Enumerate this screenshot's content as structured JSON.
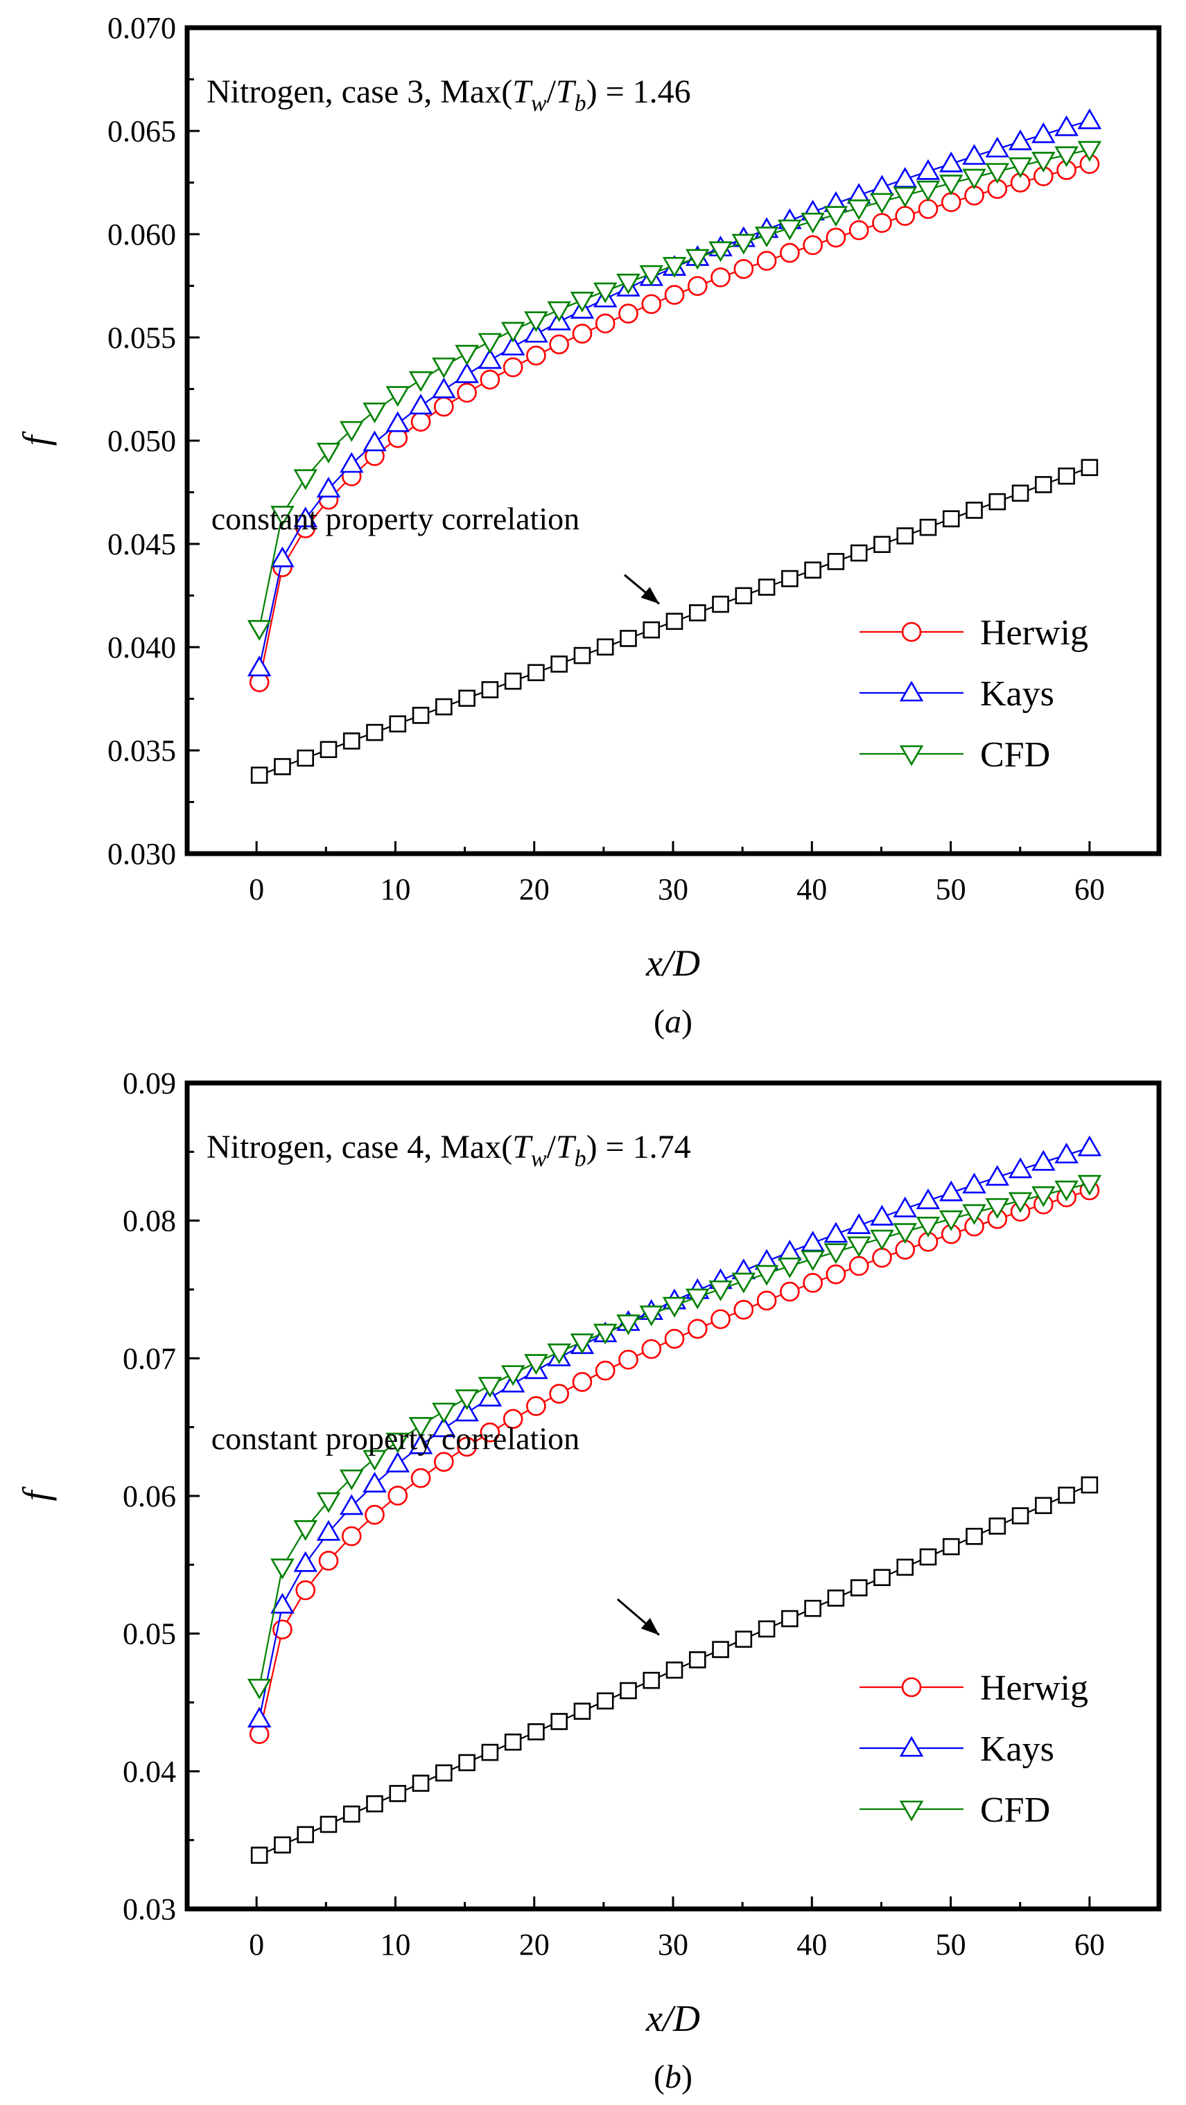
{
  "chart_data": [
    {
      "type": "line",
      "panel_label": "(a)",
      "title_parts": {
        "prefix": "Nitrogen, case 3, Max(",
        "tw": "T",
        "tw_sub": "w",
        "slash": "/",
        "tb": "T",
        "tb_sub": "b",
        "suffix": ") = 1.46"
      },
      "xlabel": "x/D",
      "ylabel": "f",
      "xlim": [
        -5,
        65
      ],
      "ylim": [
        0.03,
        0.07
      ],
      "xticks": [
        0,
        10,
        20,
        30,
        40,
        50,
        60
      ],
      "xtick_labels": [
        "0",
        "10",
        "20",
        "30",
        "40",
        "50",
        "60"
      ],
      "yticks": [
        0.03,
        0.035,
        0.04,
        0.045,
        0.05,
        0.055,
        0.06,
        0.065,
        0.07
      ],
      "ytick_labels": [
        "0.030",
        "0.035",
        "0.040",
        "0.045",
        "0.050",
        "0.055",
        "0.060",
        "0.065",
        "0.070"
      ],
      "annotation": {
        "text": "constant property correlation",
        "text_at": [
          10.0,
          0.0457
        ],
        "arrow_from": [
          26.5,
          0.0435
        ],
        "arrow_to": [
          29.0,
          0.0421
        ]
      },
      "legend_position": "lower-right",
      "series": [
        {
          "name": "Herwig",
          "color": "#ff0000",
          "marker": "circle",
          "x0": 0.2,
          "a": 0.0383,
          "b": 0.0251,
          "k": 0.42
        },
        {
          "name": "Kays",
          "color": "#0000ff",
          "marker": "triangle-up",
          "x0": 0.2,
          "a": 0.039,
          "b": 0.0265,
          "k": 0.45
        },
        {
          "name": "CFD",
          "color": "#008000",
          "marker": "triangle-down",
          "x0": 0.2,
          "a": 0.0409,
          "b": 0.0232,
          "k": 0.4
        },
        {
          "name": "constant property correlation",
          "color": "#000000",
          "marker": "square",
          "in_legend": false,
          "x0": 0.2,
          "a": 0.0338,
          "b": 0.0149,
          "k": 1.0
        }
      ]
    },
    {
      "type": "line",
      "panel_label": "(b)",
      "title_parts": {
        "prefix": "Nitrogen, case 4, Max(",
        "tw": "T",
        "tw_sub": "w",
        "slash": "/",
        "tb": "T",
        "tb_sub": "b",
        "suffix": ") = 1.74"
      },
      "xlabel": "x/D",
      "ylabel": "f",
      "xlim": [
        -5,
        65
      ],
      "ylim": [
        0.03,
        0.09
      ],
      "xticks": [
        0,
        10,
        20,
        30,
        40,
        50,
        60
      ],
      "xtick_labels": [
        "0",
        "10",
        "20",
        "30",
        "40",
        "50",
        "60"
      ],
      "yticks": [
        0.03,
        0.04,
        0.05,
        0.06,
        0.07,
        0.08,
        0.09
      ],
      "ytick_labels": [
        "0.03",
        "0.04",
        "0.05",
        "0.06",
        "0.07",
        "0.08",
        "0.09"
      ],
      "annotation": {
        "text": "constant property correlation",
        "text_at": [
          10.0,
          0.0634
        ],
        "arrow_from": [
          26.0,
          0.0525
        ],
        "arrow_to": [
          29.0,
          0.0499
        ]
      },
      "legend_position": "lower-right",
      "series": [
        {
          "name": "Herwig",
          "color": "#ff0000",
          "marker": "circle",
          "x0": 0.2,
          "a": 0.0427,
          "b": 0.0395,
          "k": 0.46
        },
        {
          "name": "Kays",
          "color": "#0000ff",
          "marker": "triangle-up",
          "x0": 0.2,
          "a": 0.0438,
          "b": 0.0415,
          "k": 0.45
        },
        {
          "name": "CFD",
          "color": "#008000",
          "marker": "triangle-down",
          "x0": 0.2,
          "a": 0.0461,
          "b": 0.0366,
          "k": 0.4
        },
        {
          "name": "constant property correlation",
          "color": "#000000",
          "marker": "square",
          "in_legend": false,
          "x0": 0.2,
          "a": 0.0339,
          "b": 0.0269,
          "k": 1.0
        }
      ]
    }
  ]
}
